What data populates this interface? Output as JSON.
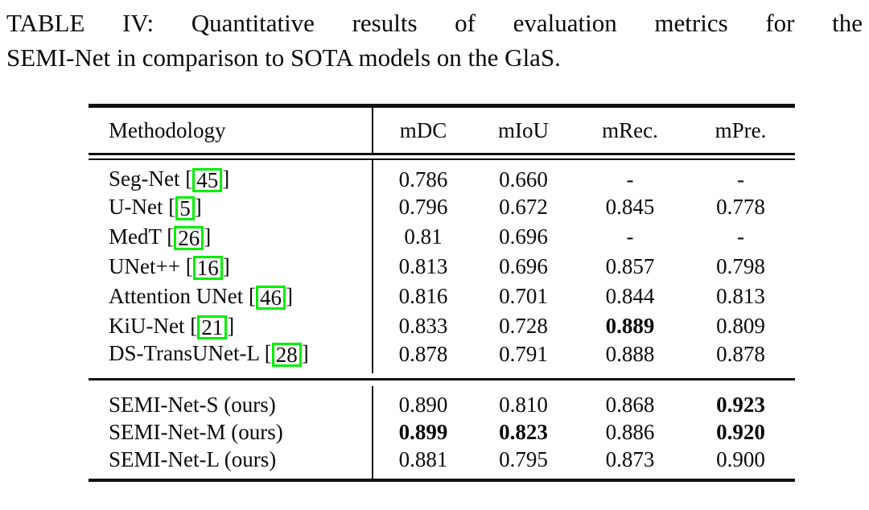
{
  "caption": {
    "line1": "TABLE IV: Quantitative results of evaluation metrics for the",
    "line2": "SEMI-Net in comparison to SOTA models on the GlaS."
  },
  "table": {
    "columns": [
      "Methodology",
      "mDC",
      "mIoU",
      "mRec.",
      "mPre."
    ],
    "citation_box_color": "#00ee00",
    "text_color": "#0a0a0a",
    "sections": [
      {
        "rows": [
          {
            "method": "Seg-Net",
            "citation": "45",
            "values": [
              "0.786",
              "0.660",
              "-",
              "-"
            ],
            "bold": [
              false,
              false,
              false,
              false
            ]
          },
          {
            "method": "U-Net",
            "citation": "5",
            "values": [
              "0.796",
              "0.672",
              "0.845",
              "0.778"
            ],
            "bold": [
              false,
              false,
              false,
              false
            ]
          },
          {
            "method": "MedT",
            "citation": "26",
            "values": [
              "0.81",
              "0.696",
              "-",
              "-"
            ],
            "bold": [
              false,
              false,
              false,
              false
            ]
          },
          {
            "method": "UNet++",
            "citation": "16",
            "values": [
              "0.813",
              "0.696",
              "0.857",
              "0.798"
            ],
            "bold": [
              false,
              false,
              false,
              false
            ]
          },
          {
            "method": "Attention UNet",
            "citation": "46",
            "values": [
              "0.816",
              "0.701",
              "0.844",
              "0.813"
            ],
            "bold": [
              false,
              false,
              false,
              false
            ]
          },
          {
            "method": "KiU-Net",
            "citation": "21",
            "values": [
              "0.833",
              "0.728",
              "0.889",
              "0.809"
            ],
            "bold": [
              false,
              false,
              true,
              false
            ]
          },
          {
            "method": "DS-TransUNet-L",
            "citation": "28",
            "values": [
              "0.878",
              "0.791",
              "0.888",
              "0.878"
            ],
            "bold": [
              false,
              false,
              false,
              false
            ]
          }
        ]
      },
      {
        "rows": [
          {
            "method": "SEMI-Net-S (ours)",
            "citation": null,
            "values": [
              "0.890",
              "0.810",
              "0.868",
              "0.923"
            ],
            "bold": [
              false,
              false,
              false,
              true
            ]
          },
          {
            "method": "SEMI-Net-M (ours)",
            "citation": null,
            "values": [
              "0.899",
              "0.823",
              "0.886",
              "0.920"
            ],
            "bold": [
              true,
              true,
              false,
              true
            ]
          },
          {
            "method": "SEMI-Net-L (ours)",
            "citation": null,
            "values": [
              "0.881",
              "0.795",
              "0.873",
              "0.900"
            ],
            "bold": [
              false,
              false,
              false,
              false
            ]
          }
        ]
      }
    ]
  }
}
